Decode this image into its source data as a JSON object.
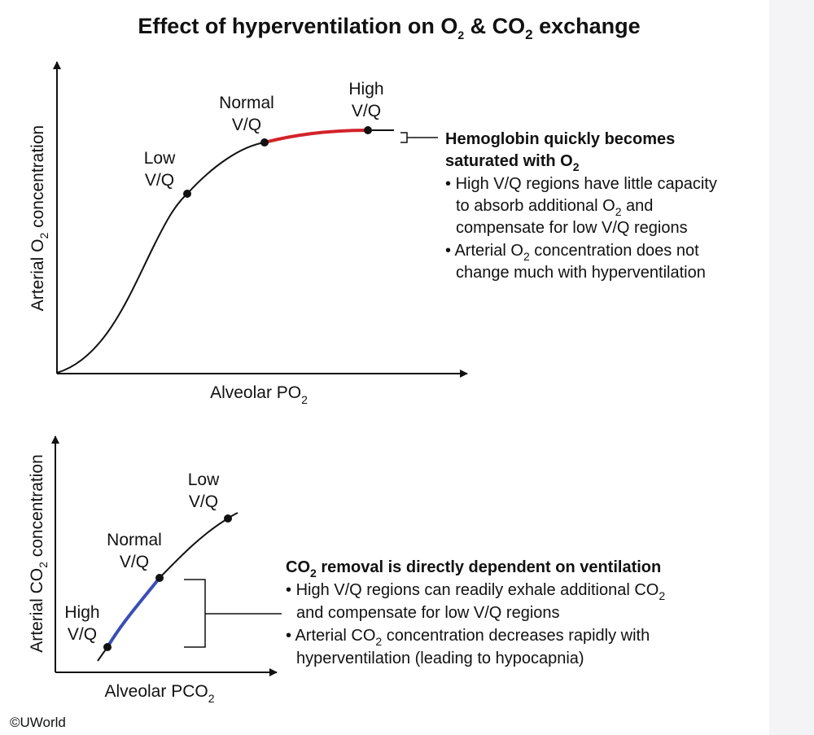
{
  "title": {
    "main": "Effect of hyperventilation on O",
    "sub1": "2",
    "mid": " & CO",
    "sub2": "2",
    "end": " exchange"
  },
  "top_chart": {
    "ylabel": {
      "pre": "Arterial O",
      "sub": "2",
      "post": " concentration"
    },
    "xlabel": {
      "pre": "Alveolar PO",
      "sub": "2"
    },
    "points": {
      "low_line1": "Low",
      "low_line2": "V/Q",
      "normal_line1": "Normal",
      "normal_line2": "V/Q",
      "high_line1": "High",
      "high_line2": "V/Q"
    },
    "highlight_color": "#d2232a",
    "note": {
      "heading_line1": "Hemoglobin quickly becomes",
      "heading_line2_pre": "saturated with O",
      "heading_line2_sub": "2",
      "b1_l1": "High V/Q regions have little capacity",
      "b1_l2_pre": "to absorb additional O",
      "b1_l2_sub": "2",
      "b1_l2_post": " and",
      "b1_l3": "compensate for low V/Q regions",
      "b2_l1_pre": "Arterial O",
      "b2_l1_sub": "2",
      "b2_l1_post": " concentration does not",
      "b2_l2": "change much with hyperventilation"
    }
  },
  "bottom_chart": {
    "ylabel": {
      "pre": "Arterial CO",
      "sub": "2",
      "post": " concentration"
    },
    "xlabel": {
      "pre": "Alveolar PCO",
      "sub": "2"
    },
    "points": {
      "low_line1": "Low",
      "low_line2": "V/Q",
      "normal_line1": "Normal",
      "normal_line2": "V/Q",
      "high_line1": "High",
      "high_line2": "V/Q"
    },
    "highlight_color": "#3a4fb5",
    "note": {
      "heading_pre": "CO",
      "heading_sub": "2",
      "heading_post": " removal is directly dependent on ventilation",
      "b1_l1_pre": "High V/Q regions can readily exhale additional CO",
      "b1_l1_sub": "2",
      "b1_l2": "and compensate for low V/Q regions",
      "b2_l1_pre": "Arterial CO",
      "b2_l1_sub": "2",
      "b2_l1_post": " concentration decreases rapidly with",
      "b2_l2": "hyperventilation (leading to hypocapnia)"
    }
  },
  "copyright": "©UWorld"
}
